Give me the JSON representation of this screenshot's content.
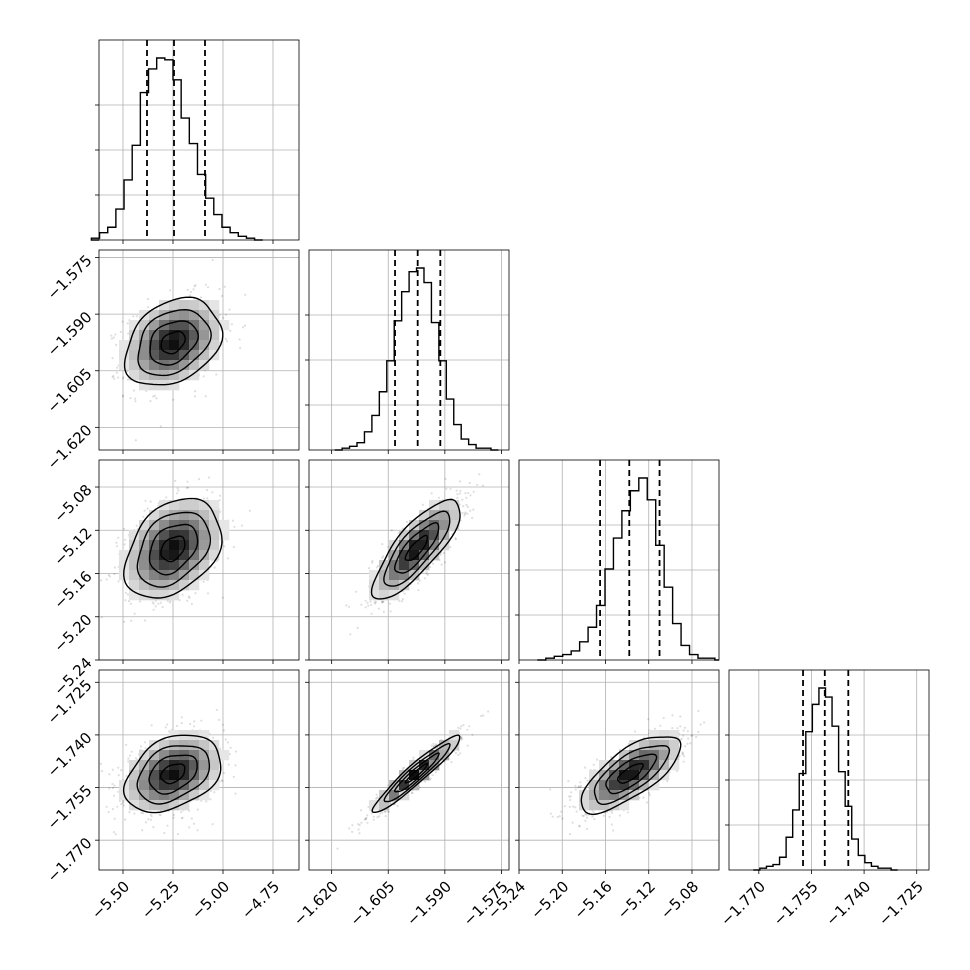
{
  "chart_data": {
    "type": "corner",
    "parameters": [
      {
        "range": [
          -5.62,
          -4.62
        ],
        "ticks": [
          -5.5,
          -5.25,
          -5.0,
          -4.75
        ],
        "tick_labels": [
          "−5.50",
          "−5.25",
          "−5.00",
          "−4.75"
        ],
        "mean": -5.25,
        "sd": 0.12,
        "quantiles": [
          -5.38,
          -5.245,
          -5.09
        ],
        "hist_max": 1.0,
        "hist_heights": [
          0.01,
          0.04,
          0.07,
          0.17,
          0.33,
          0.52,
          0.81,
          0.94,
          1.0,
          0.99,
          0.88,
          0.67,
          0.53,
          0.36,
          0.23,
          0.14,
          0.07,
          0.04,
          0.02,
          0.01
        ]
      },
      {
        "range": [
          -1.626,
          -1.573
        ],
        "ticks": [
          -1.62,
          -1.605,
          -1.59,
          -1.575
        ],
        "tick_labels": [
          "−1.620",
          "−1.605",
          "−1.590",
          "−1.575"
        ],
        "mean": -1.5975,
        "sd": 0.0058,
        "quantiles": [
          -1.6032,
          -1.5972,
          -1.5912
        ],
        "hist_max": 1.0,
        "hist_heights": [
          0.01,
          0.02,
          0.04,
          0.1,
          0.19,
          0.32,
          0.49,
          0.71,
          0.87,
          0.98,
          1.0,
          0.92,
          0.7,
          0.49,
          0.28,
          0.14,
          0.06,
          0.03,
          0.01,
          0.01
        ]
      },
      {
        "range": [
          -5.24,
          -5.055
        ],
        "ticks": [
          -5.24,
          -5.2,
          -5.16,
          -5.12,
          -5.08
        ],
        "tick_labels": [
          "−5.24",
          "−5.20",
          "−5.16",
          "−5.12",
          "−5.08"
        ],
        "mean": -5.137,
        "sd": 0.023,
        "quantiles": [
          -5.165,
          -5.138,
          -5.11
        ],
        "hist_max": 1.0,
        "hist_heights": [
          0.01,
          0.02,
          0.03,
          0.05,
          0.1,
          0.18,
          0.3,
          0.5,
          0.67,
          0.82,
          0.93,
          1.0,
          0.88,
          0.63,
          0.4,
          0.2,
          0.08,
          0.03,
          0.01,
          0.01
        ]
      },
      {
        "range": [
          -1.7785,
          -1.7215
        ],
        "ticks": [
          -1.77,
          -1.755,
          -1.74,
          -1.725
        ],
        "tick_labels": [
          "−1.770",
          "−1.755",
          "−1.740",
          "−1.725"
        ],
        "mean": -1.751,
        "sd": 0.0055,
        "quantiles": [
          -1.7574,
          -1.7512,
          -1.7445
        ],
        "hist_max": 1.0,
        "hist_heights": [
          0.01,
          0.02,
          0.03,
          0.07,
          0.18,
          0.33,
          0.53,
          0.76,
          0.91,
          1.0,
          0.95,
          0.79,
          0.54,
          0.35,
          0.17,
          0.08,
          0.04,
          0.02,
          0.01,
          0.01
        ]
      }
    ],
    "correlations": [
      [
        0,
        0
      ],
      [
        0.3,
        0
      ],
      [
        0.35,
        0.8
      ],
      [
        0.35,
        0.95,
        0.72
      ]
    ],
    "contour_levels": [
      0.5,
      1.0,
      1.5,
      2.0
    ],
    "grid": true,
    "x_tick_rotation": -45,
    "y_tick_rotation": -45,
    "colors": {
      "points": "#000000",
      "lines": "#000000",
      "grid": "#b0b0b0",
      "background": "#ffffff"
    }
  }
}
